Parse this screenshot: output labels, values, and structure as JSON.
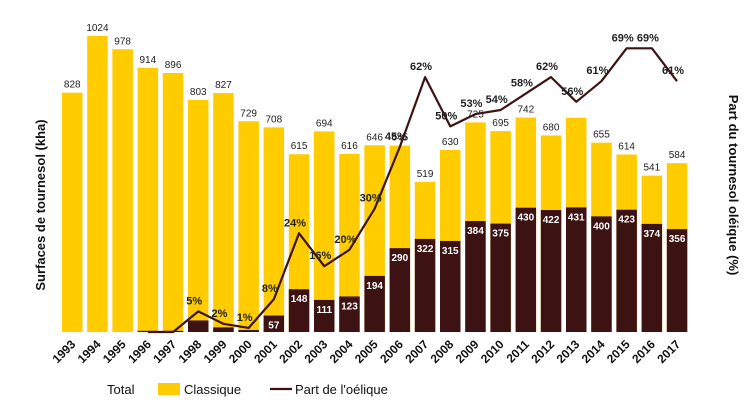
{
  "chart_data": {
    "type": "bar",
    "ylabel_left": "Surfaces de tournesol (kha)",
    "ylabel_right": "Part du tournesol oléique (%)",
    "colors": {
      "classique": "#ffcc00",
      "oleique": "#3d1212",
      "line": "#3d1212"
    },
    "legend": {
      "total": "Total",
      "classique": "Classique",
      "line": "Part de l'oélique"
    },
    "categories": [
      "1993",
      "1994",
      "1995",
      "1996",
      "1997",
      "1998",
      "1999",
      "2000",
      "2001",
      "2002",
      "2003",
      "2004",
      "2005",
      "2006",
      "2007",
      "2008",
      "2009",
      "2010",
      "2011",
      "2012",
      "2013",
      "2014",
      "2015",
      "2016",
      "2017"
    ],
    "total": [
      828,
      1024,
      978,
      914,
      896,
      803,
      827,
      729,
      708,
      615,
      694,
      616,
      646,
      645,
      519,
      630,
      725,
      695,
      742,
      680,
      741,
      655,
      614,
      541,
      584
    ],
    "total_labels": [
      "828",
      "1024",
      "978",
      "914",
      "896",
      "803",
      "827",
      "729",
      "708",
      "615",
      "694",
      "616",
      "646",
      "645",
      "519",
      "630",
      "725",
      "695",
      "742",
      "680",
      "",
      "655",
      "614",
      "541",
      "584"
    ],
    "oleique": [
      0,
      0,
      0,
      4,
      4,
      40,
      16,
      7,
      57,
      148,
      111,
      123,
      194,
      290,
      322,
      315,
      384,
      375,
      430,
      422,
      431,
      400,
      423,
      374,
      356
    ],
    "oleique_labels": [
      "",
      "",
      "",
      "",
      "",
      "",
      "",
      "",
      "57",
      "148",
      "111",
      "123",
      "194",
      "290",
      "322",
      "315",
      "384",
      "375",
      "430",
      "422",
      "431",
      "400",
      "423",
      "374",
      "356"
    ],
    "share_pct": [
      null,
      null,
      null,
      0,
      0,
      5,
      2,
      1,
      8,
      24,
      16,
      20,
      30,
      45,
      62,
      50,
      53,
      54,
      58,
      62,
      56,
      61,
      69,
      69,
      61
    ],
    "share_labels": [
      "",
      "",
      "",
      "",
      "",
      "5%",
      "2%",
      "1%",
      "8%",
      "24%",
      "16%",
      "20%",
      "30%",
      "45%",
      "62%",
      "50%",
      "53%",
      "54%",
      "58%",
      "62%",
      "56%",
      "61%",
      "69%",
      "69%",
      "61%"
    ],
    "ylim_left": [
      0,
      1024
    ],
    "ylim_right": [
      0,
      72
    ]
  }
}
